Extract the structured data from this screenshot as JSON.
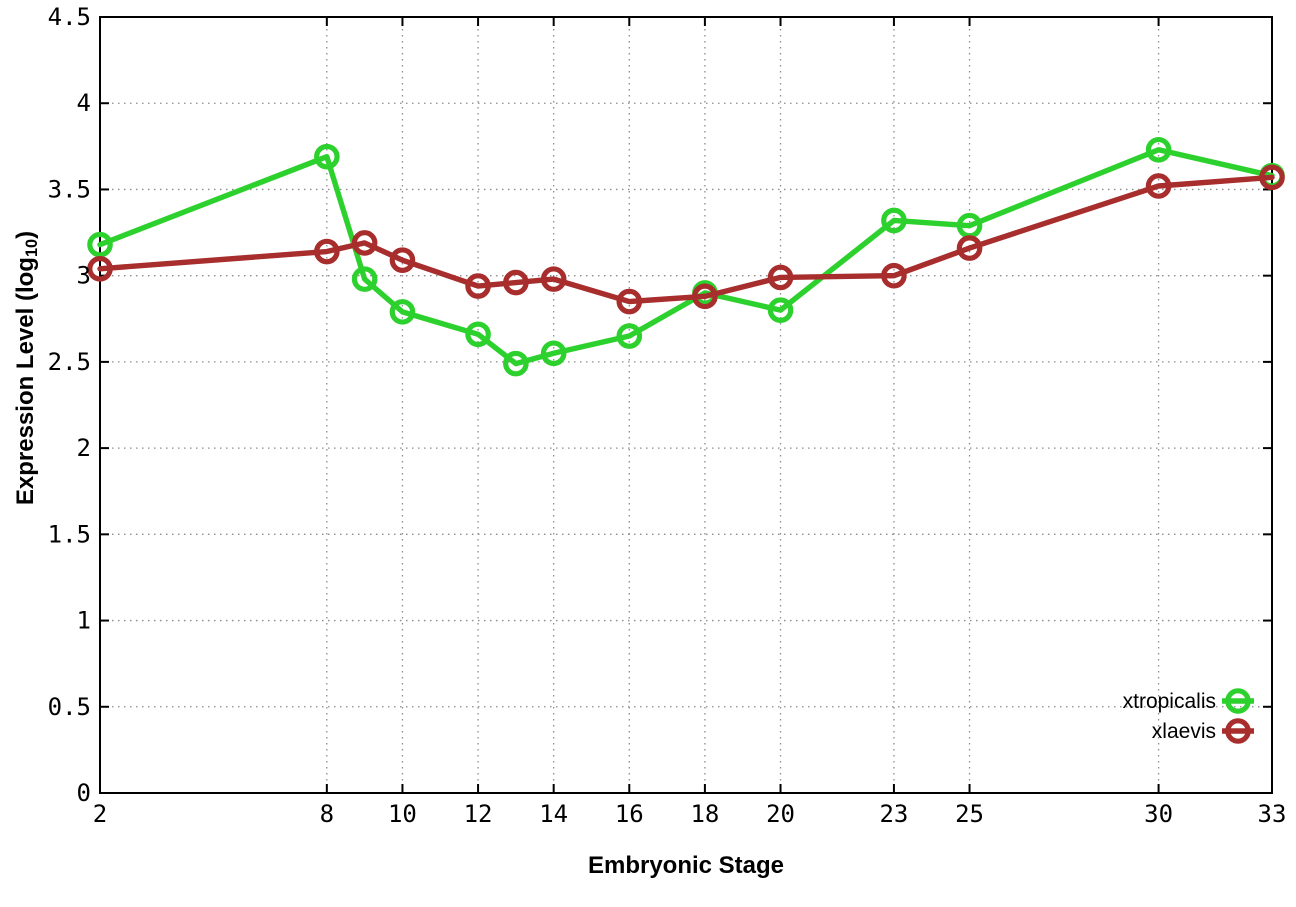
{
  "chart_data": {
    "type": "line",
    "title": "",
    "xlabel": "Embryonic Stage",
    "ylabel": "Expression Level (log10)",
    "ylabel_parts": {
      "prefix": "Expression Level (log",
      "subscript": "10",
      "suffix": ")"
    },
    "xlim": [
      2,
      33
    ],
    "ylim": [
      0,
      4.5
    ],
    "x_ticks": [
      2,
      8,
      10,
      12,
      14,
      16,
      18,
      20,
      23,
      25,
      30,
      33
    ],
    "x_tick_labels": [
      "2",
      "8",
      "10",
      "12",
      "14",
      "16",
      "18",
      "20",
      "23",
      "25",
      "30",
      "33"
    ],
    "y_ticks": [
      0,
      0.5,
      1,
      1.5,
      2,
      2.5,
      3,
      3.5,
      4,
      4.5
    ],
    "y_tick_labels": [
      "0",
      "0.5",
      "1",
      "1.5",
      "2",
      "2.5",
      "3",
      "3.5",
      "4",
      "4.5"
    ],
    "grid": true,
    "legend_position": "bottom-right",
    "x": [
      2,
      8,
      9,
      10,
      12,
      13,
      14,
      16,
      18,
      20,
      23,
      25,
      30,
      33
    ],
    "series": [
      {
        "name": "xtropicalis",
        "color": "#2dd12d",
        "values": [
          3.18,
          3.69,
          2.98,
          2.79,
          2.66,
          2.49,
          2.55,
          2.65,
          2.9,
          2.8,
          3.32,
          3.29,
          3.73,
          3.58
        ]
      },
      {
        "name": "xlaevis",
        "color": "#a82d2d",
        "values": [
          3.04,
          3.14,
          3.19,
          3.09,
          2.94,
          2.96,
          2.98,
          2.85,
          2.88,
          2.99,
          3.0,
          3.16,
          3.52,
          3.57
        ]
      }
    ],
    "colors": {
      "background": "#ffffff",
      "axis": "#000000",
      "grid": "#8c8c8c",
      "text": "#000000"
    }
  }
}
